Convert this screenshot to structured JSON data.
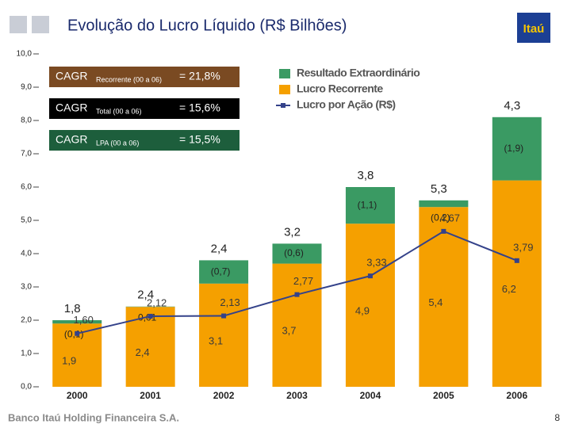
{
  "chart_data": {
    "type": "bar",
    "title": "Evolução do Lucro Líquido (R$ Bilhões)",
    "logo": "Itaú",
    "footer": "Banco Itaú Holding Financeira S.A.",
    "page_number": "8",
    "categories": [
      "2000",
      "2001",
      "2002",
      "2003",
      "2004",
      "2005",
      "2006"
    ],
    "series": [
      {
        "name": "Lucro Recorrente",
        "color": "#f5a000",
        "values": [
          1.9,
          2.4,
          3.1,
          3.7,
          4.9,
          5.4,
          6.2
        ],
        "value_labels": [
          "1,9",
          "2,4",
          "3,1",
          "3,7",
          "4,9",
          "5,4",
          "6,2"
        ]
      },
      {
        "name": "Resultado Extraordinário",
        "color": "#3a9a63",
        "values": [
          -0.1,
          0.01,
          -0.7,
          -0.6,
          -1.1,
          -0.2,
          -1.9
        ],
        "value_labels": [
          "(0,1)",
          "0,01",
          "(0,7)",
          "(0,6)",
          "(1,1)",
          "(0,2)",
          "(1,9)"
        ]
      },
      {
        "name": "Lucro por Ação (R$)",
        "type": "line",
        "color": "#34428a",
        "values": [
          1.6,
          2.12,
          2.13,
          2.77,
          3.33,
          4.67,
          3.79
        ],
        "value_labels": [
          "1,60",
          "2,12",
          "2,13",
          "2,77",
          "3,33",
          "4,67",
          "3,79"
        ]
      }
    ],
    "net_values": [
      1.8,
      2.4,
      2.4,
      3.2,
      3.8,
      5.3,
      4.3
    ],
    "net_labels": [
      "1,8",
      "2,4",
      "2,4",
      "3,2",
      "3,8",
      "5,3",
      "4,3"
    ],
    "cagr": [
      {
        "label": "CAGR",
        "sub": "Recorrente (00 a 06)",
        "value": "= 21,8%",
        "color": "#7a4a22"
      },
      {
        "label": "CAGR",
        "sub": "Total (00 a 06)",
        "value": "= 15,6%",
        "color": "#000000"
      },
      {
        "label": "CAGR",
        "sub": "LPA (00 a 06)",
        "value": "= 15,5%",
        "color": "#1d5e3c"
      }
    ],
    "ylim": [
      0,
      10
    ],
    "yticks": [
      {
        "value": 0,
        "label": "0,0"
      },
      {
        "value": 1,
        "label": "1,0"
      },
      {
        "value": 2,
        "label": "2,0"
      },
      {
        "value": 3,
        "label": "3,0"
      },
      {
        "value": 4,
        "label": "4,0"
      },
      {
        "value": 5,
        "label": "5,0"
      },
      {
        "value": 6,
        "label": "6,0"
      },
      {
        "value": 7,
        "label": "7,0"
      },
      {
        "value": 8,
        "label": "8,0"
      },
      {
        "value": 9,
        "label": "9,0"
      },
      {
        "value": 10,
        "label": "10,0"
      }
    ]
  }
}
